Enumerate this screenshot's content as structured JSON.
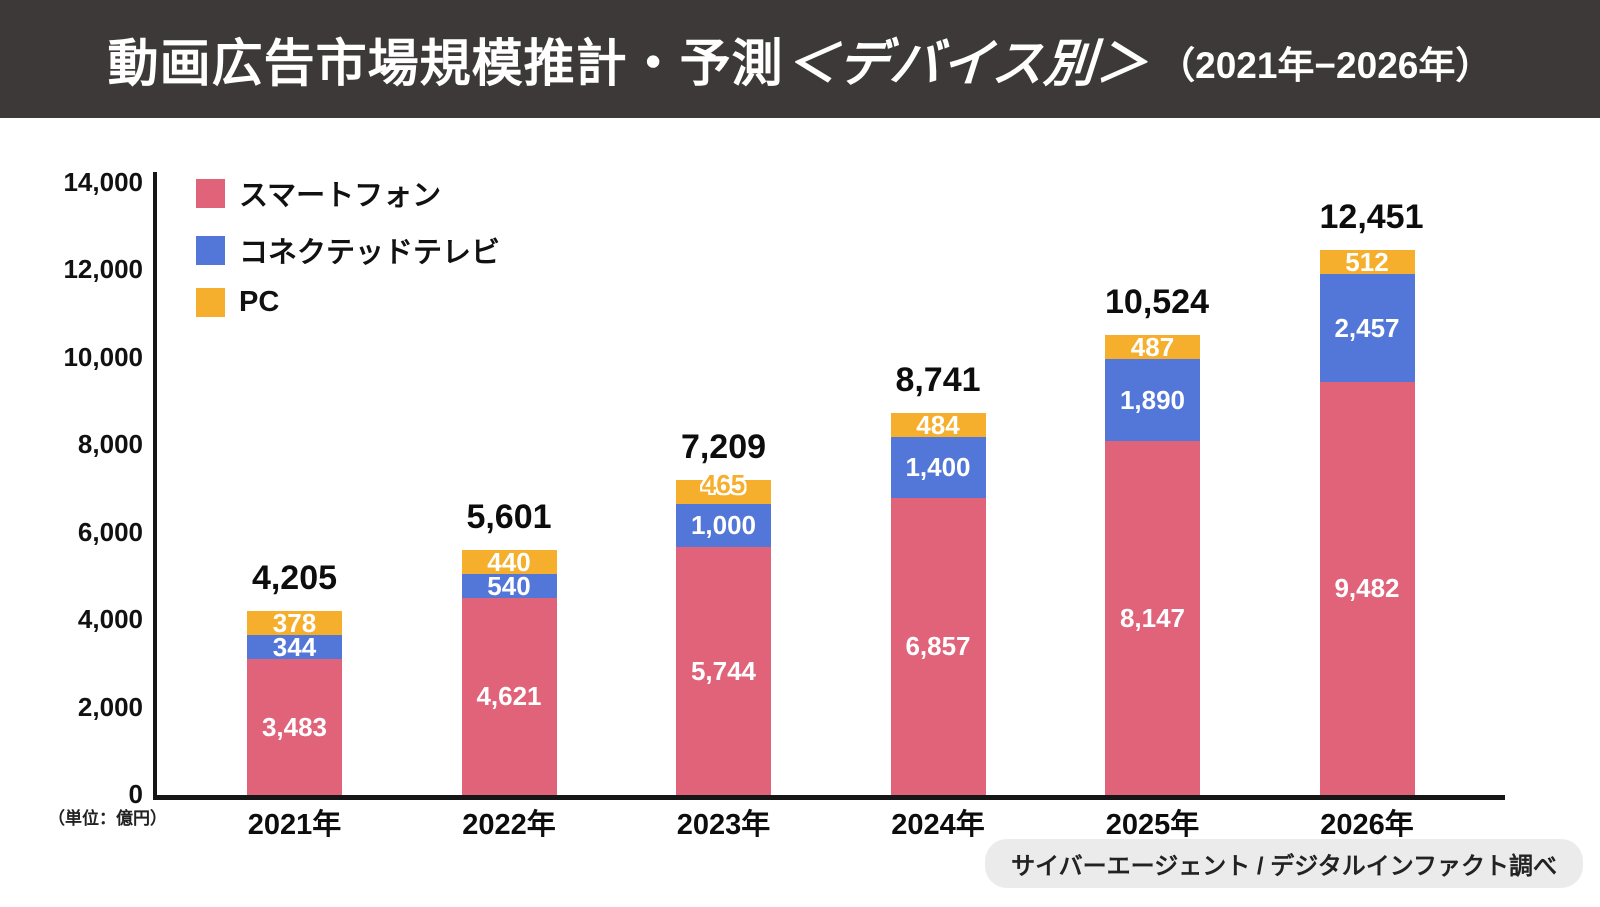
{
  "header": {
    "title_main": "動画広告市場規模推計・予測",
    "title_device": "＜デバイス別＞",
    "title_years": "（2021年−2026年）"
  },
  "colors": {
    "smartphone": "#E0637A",
    "connected_tv": "#5277D8",
    "pc": "#F6AF2D",
    "header_bg": "#3D3939",
    "axis": "#161616",
    "credit_bg": "#EBEBEB"
  },
  "chart_data": {
    "type": "bar",
    "stacked": true,
    "categories": [
      "2021年",
      "2022年",
      "2023年",
      "2024年",
      "2025年",
      "2026年"
    ],
    "series": [
      {
        "name": "スマートフォン",
        "color_key": "smartphone",
        "values": [
          3483,
          4621,
          5744,
          6857,
          8147,
          9482
        ]
      },
      {
        "name": "コネクテッドテレビ",
        "color_key": "connected_tv",
        "values": [
          344,
          540,
          1000,
          1400,
          1890,
          2457
        ]
      },
      {
        "name": "PC",
        "color_key": "pc",
        "values": [
          378,
          440,
          465,
          484,
          487,
          512
        ],
        "outlined_label_indexes": [
          2
        ]
      }
    ],
    "totals": [
      4205,
      5601,
      7209,
      8741,
      10524,
      12451
    ],
    "y_ticks": [
      0,
      2000,
      4000,
      6000,
      8000,
      10000,
      12000,
      14000
    ],
    "ylim": [
      0,
      14000
    ],
    "ylabel_note": "（単位：億円）",
    "grid": false,
    "legend_position": "top-left"
  },
  "credit": "サイバーエージェント / デジタルインファクト調べ"
}
